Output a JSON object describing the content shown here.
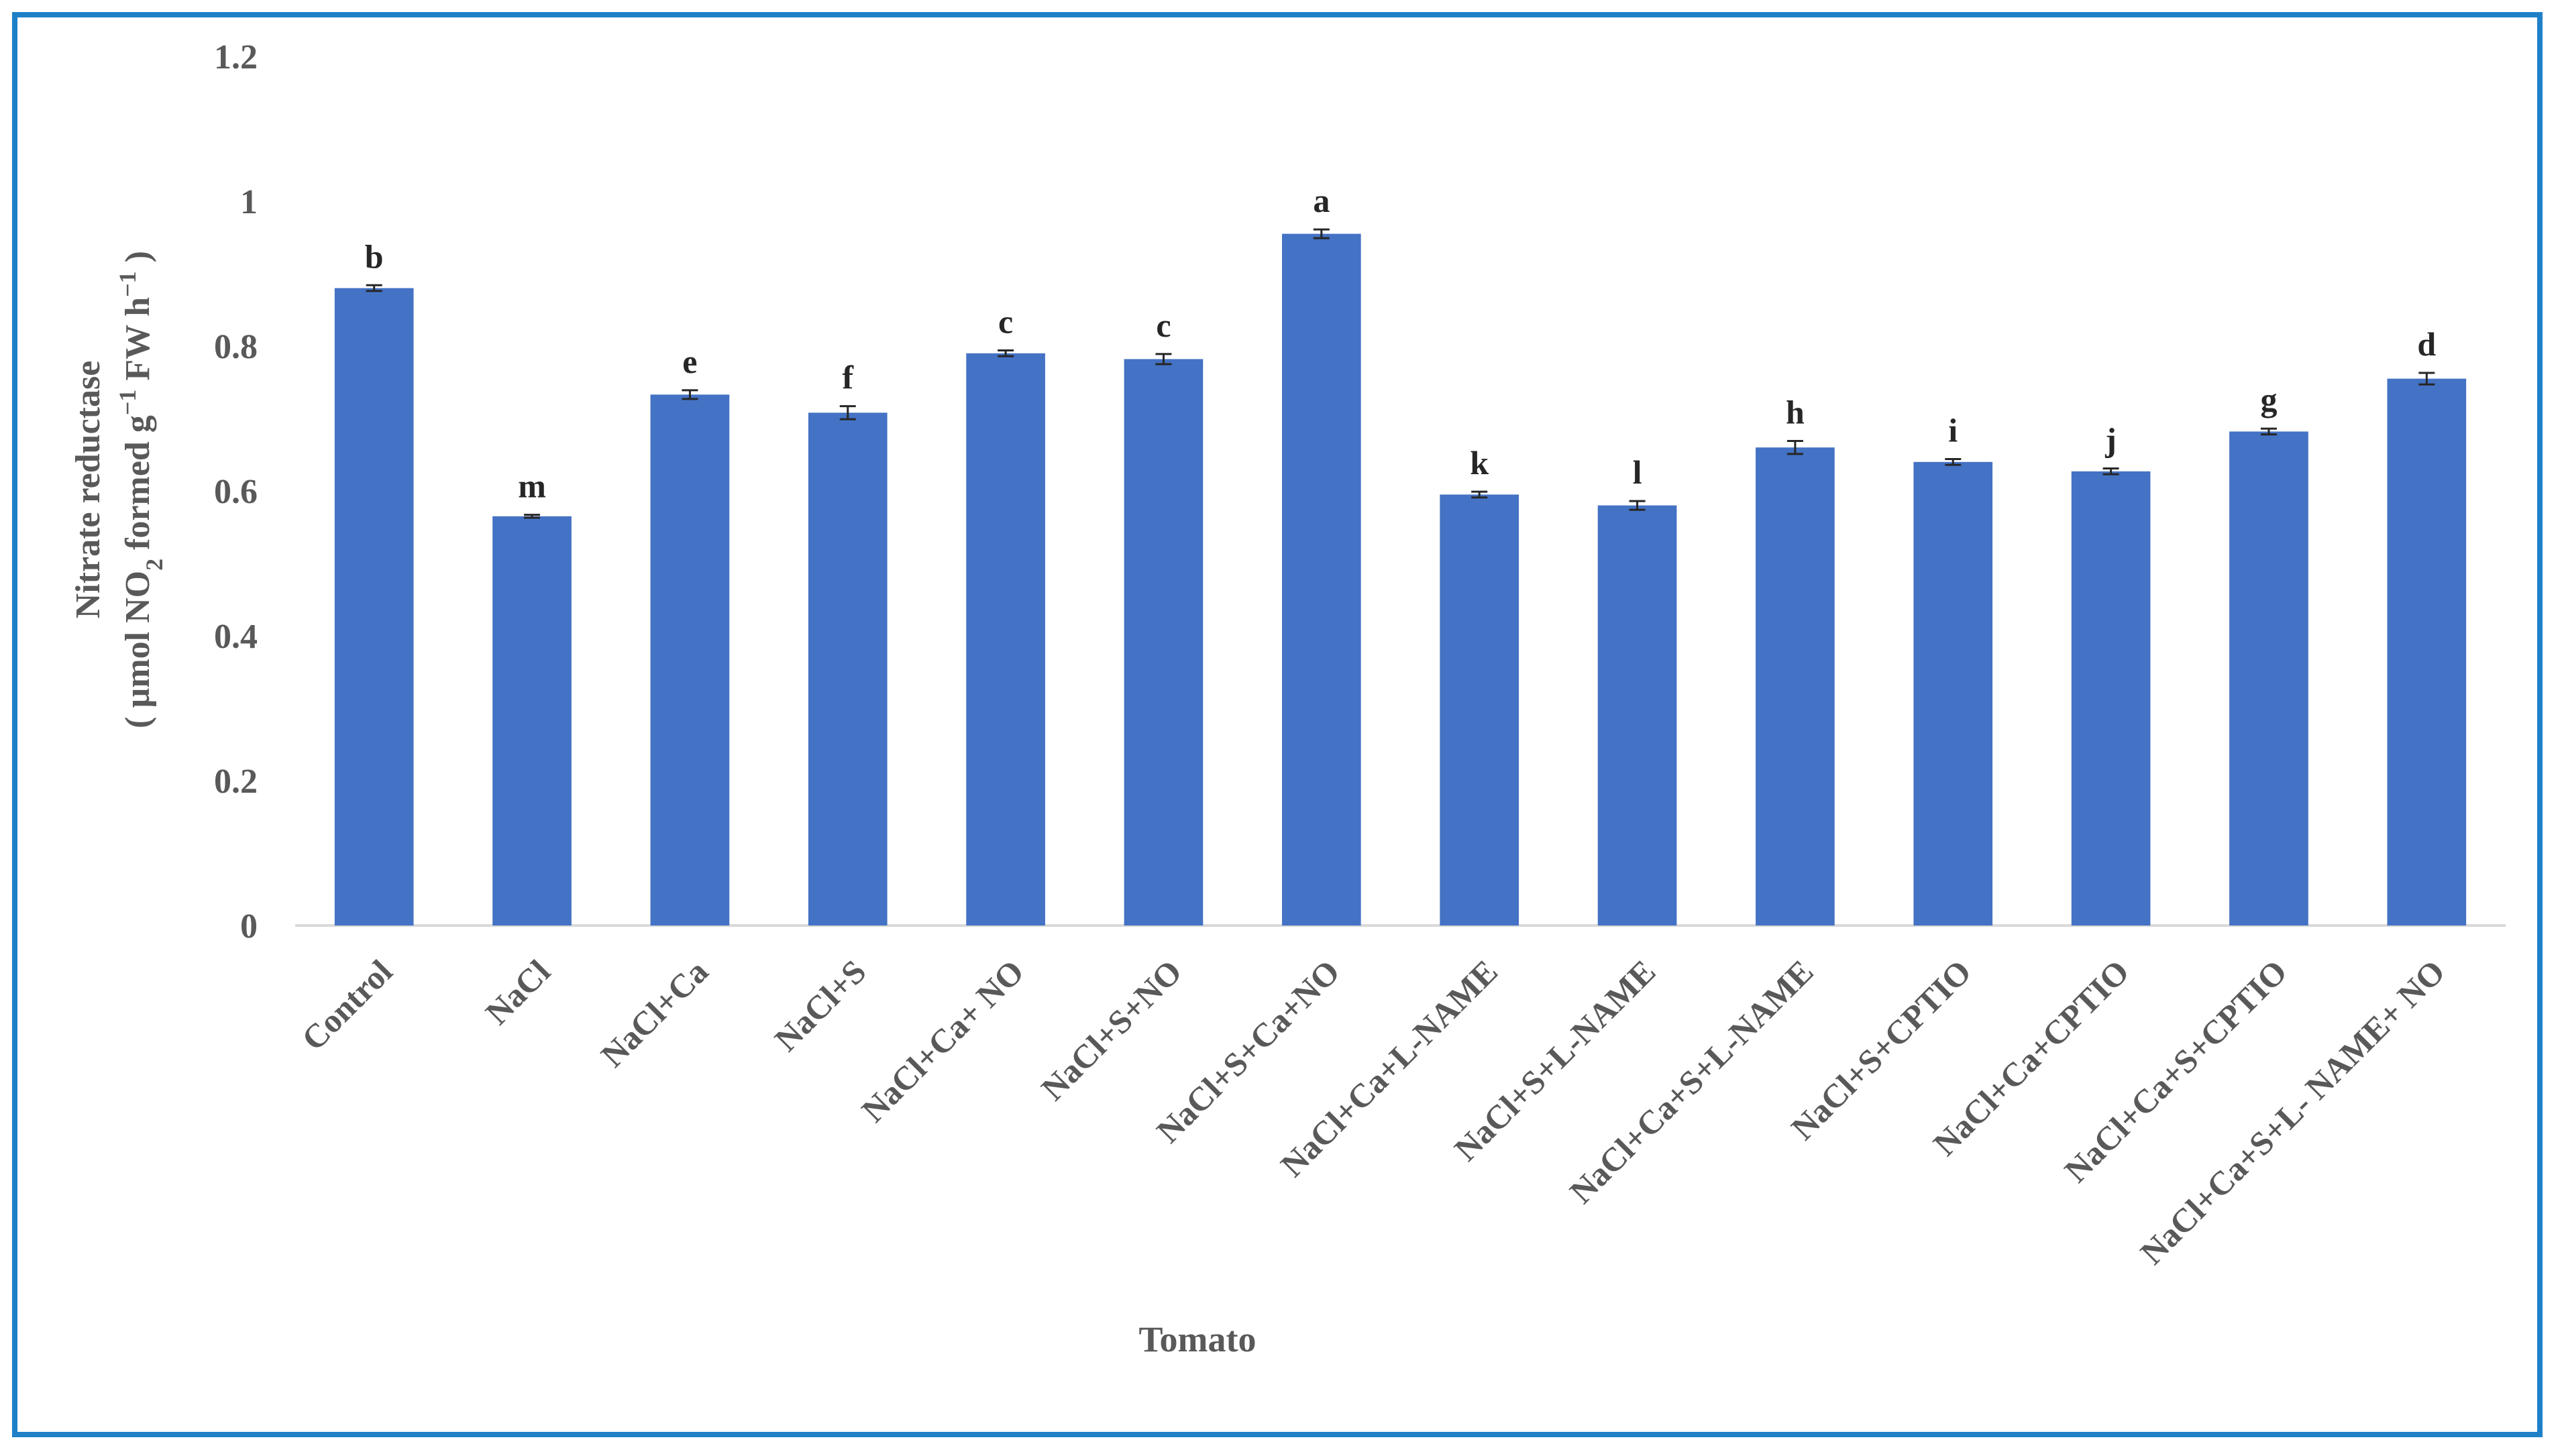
{
  "chart_data": {
    "type": "bar",
    "xlabel": "Tomato",
    "ylabel_line1": "Nitrate reductase",
    "ylabel_line2": {
      "open": "( µmol NO",
      "sub": "2",
      "mid": " formed g",
      "sup": "−1",
      "end": " FW h",
      "sup2": "−1",
      "close": " )"
    },
    "ylim": [
      0,
      1.2
    ],
    "yticks": [
      "0",
      "0.2",
      "0.4",
      "0.6",
      "0.8",
      "1",
      "1.2"
    ],
    "ytick_values": [
      0,
      0.2,
      0.4,
      0.6,
      0.8,
      1.0,
      1.2
    ],
    "grid": false,
    "colors": {
      "bar": "#4472c4",
      "axis": "#d9d9d9",
      "frame": "#1f80c8"
    },
    "categories": [
      "Control",
      "NaCl",
      "NaCl+Ca",
      "NaCl+S",
      "NaCl+Ca+ NO",
      "NaCl+S+NO",
      "NaCl+S+Ca+NO",
      "NaCl+Ca+L-NAME",
      "NaCl+S+L-NAME",
      "NaCl+Ca+S+L-NAME",
      "NaCl+S+CPTIO",
      "NaCl+Ca+CPTIO",
      "NaCl+Ca+S+CPTIO",
      "NaCl+Ca+S+L- NAME+ NO"
    ],
    "values": [
      0.88,
      0.565,
      0.733,
      0.708,
      0.79,
      0.782,
      0.955,
      0.595,
      0.58,
      0.66,
      0.64,
      0.627,
      0.682,
      0.755
    ],
    "errors": [
      0.004,
      0.002,
      0.006,
      0.009,
      0.004,
      0.007,
      0.006,
      0.004,
      0.006,
      0.009,
      0.004,
      0.004,
      0.004,
      0.008
    ],
    "letters": [
      "b",
      "m",
      "e",
      "f",
      "c",
      "c",
      "a",
      "k",
      "l",
      "h",
      "i",
      "j",
      "g",
      "d"
    ]
  }
}
